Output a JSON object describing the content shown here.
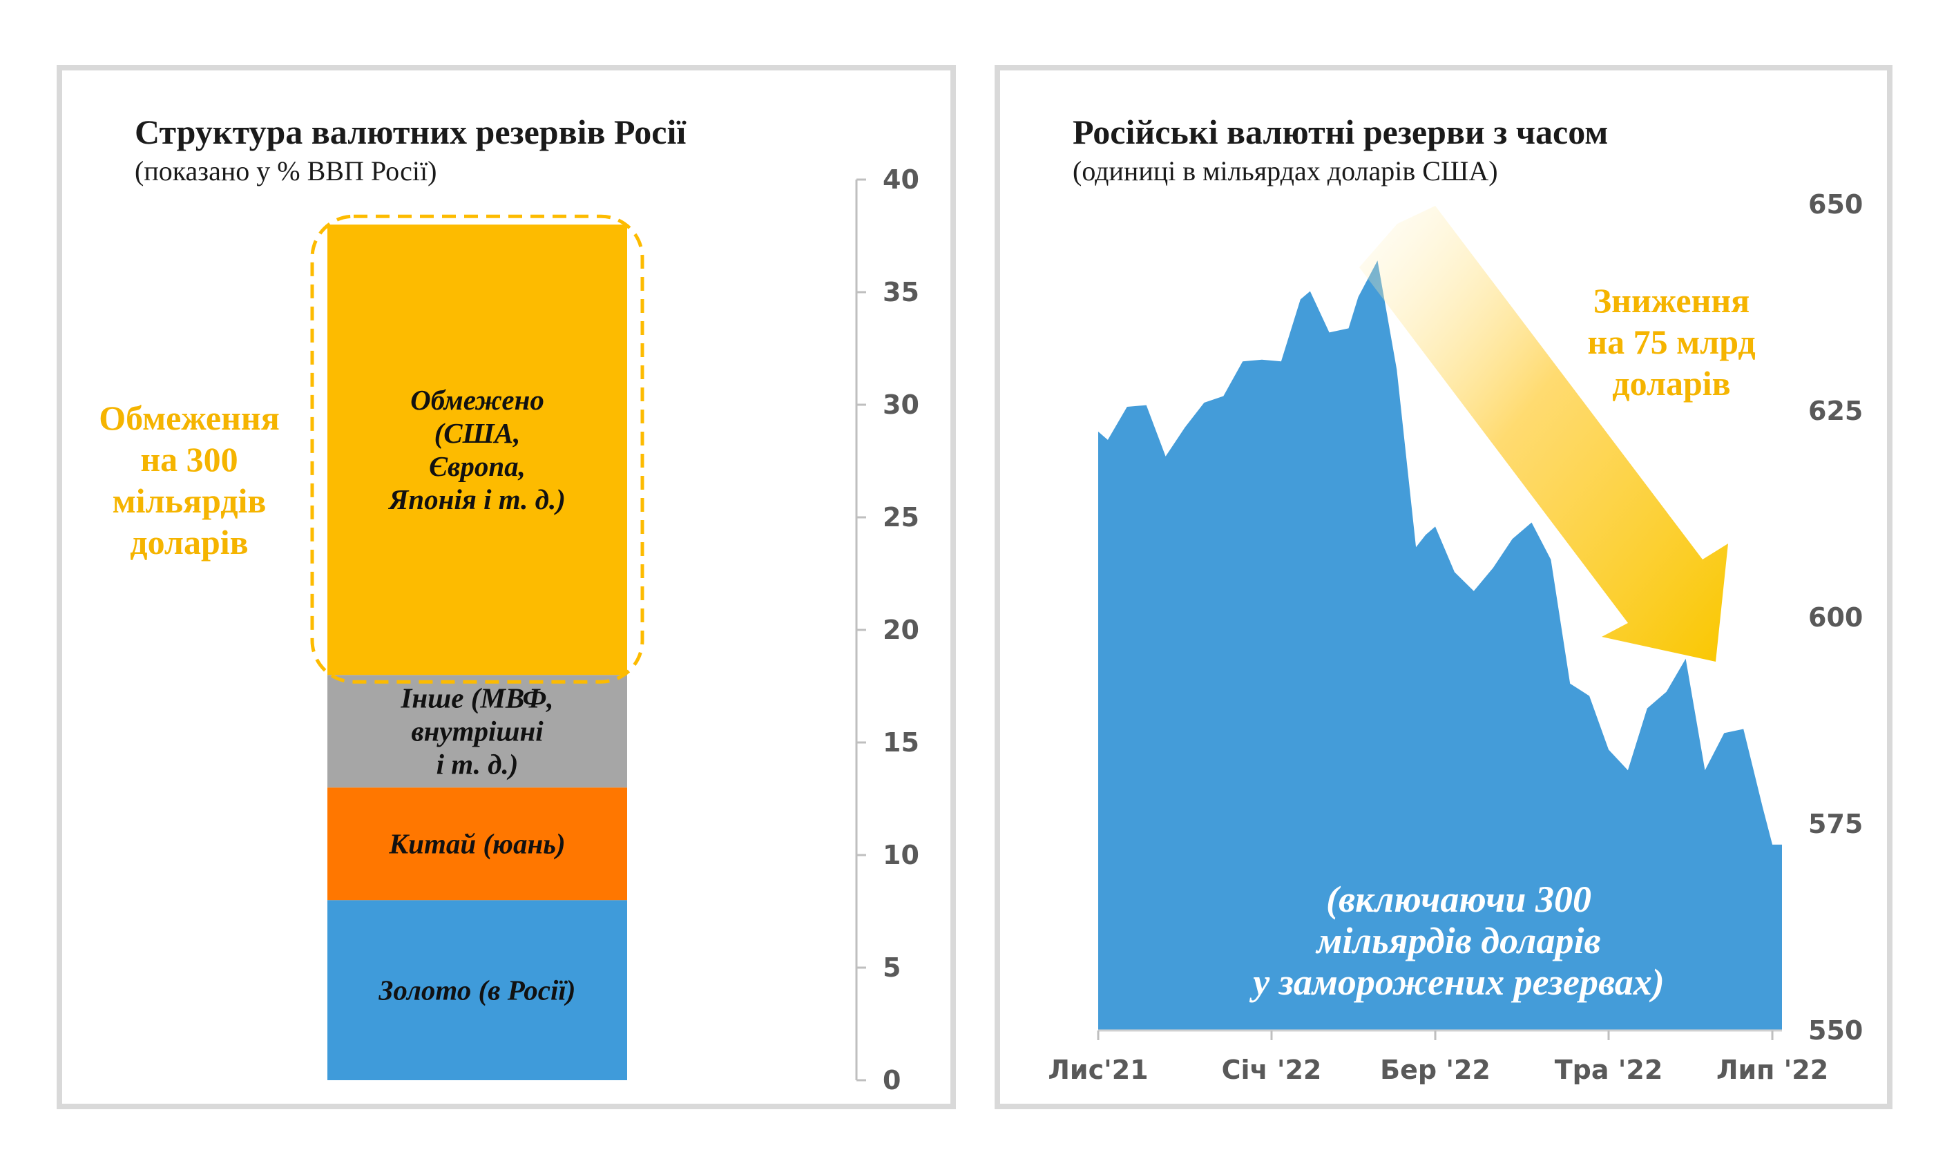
{
  "left": {
    "title": "Структура валютних резервів Росії",
    "subtitle": "(показано у % ВВП Росії)",
    "callout_lines": [
      "Обмеження",
      "на 300",
      "мільярдів",
      "доларів"
    ]
  },
  "right": {
    "title": "Російські валютні резерви з часом",
    "subtitle": "(одиниці в мільярдах доларів США)",
    "callout_lines": [
      "Зниження",
      "на 75 млрд",
      "доларів"
    ],
    "note_lines": [
      "(включаючи 300",
      "мільярдів доларів",
      "у заморожених резервах)"
    ]
  },
  "colors": {
    "gold": "#3f9bda",
    "china": "#ff7700",
    "other": "#a6a6a6",
    "restricted": "#fdbb00",
    "area": "#449cd9",
    "callout": "#f5b400",
    "arrow": "#ffd24d"
  },
  "chart_data": [
    {
      "type": "bar",
      "stacked": true,
      "ylim": [
        0,
        40
      ],
      "yticks": [
        0,
        5,
        10,
        15,
        20,
        25,
        30,
        35,
        40
      ],
      "segments": [
        {
          "lines": [
            "Золото (в Росії)"
          ],
          "value": 8
        },
        {
          "lines": [
            "Китай (юань)"
          ],
          "value": 5
        },
        {
          "lines": [
            "Інше (МВФ,",
            "внутрішні",
            "і т. д.)"
          ],
          "value": 5
        },
        {
          "lines": [
            "Обмежено",
            "(США,",
            "Європа,",
            "Японія і т. д.)"
          ],
          "value": 20
        }
      ]
    },
    {
      "type": "area",
      "ylim": [
        550,
        650
      ],
      "yticks": [
        550,
        575,
        600,
        625,
        650
      ],
      "xticks": [
        {
          "label": "Лис'21",
          "x": 0
        },
        {
          "label": "Січ '22",
          "x": 9
        },
        {
          "label": "Бер '22",
          "x": 17.5
        },
        {
          "label": "Тра '22",
          "x": 26.5
        },
        {
          "label": "Лип '22",
          "x": 35
        }
      ],
      "x": [
        0,
        0.5,
        1.5,
        2.5,
        3.5,
        4.5,
        5.5,
        6.5,
        7.5,
        8.5,
        9.5,
        10.5,
        11,
        12,
        13,
        13.5,
        14.5,
        15.5,
        16.5,
        17,
        17.5,
        18.5,
        19.5,
        20.5,
        21.5,
        22.5,
        23.5,
        24.5,
        25.5,
        26.5,
        27.5,
        28.5,
        29.5,
        30.5,
        31.5,
        32.5,
        33.5,
        34.5,
        35,
        35.5
      ],
      "values": [
        622.5,
        621.5,
        625.5,
        625.7,
        619.5,
        623.0,
        626.0,
        626.8,
        631.0,
        631.2,
        631.0,
        638.5,
        639.5,
        634.5,
        635.0,
        638.8,
        643.2,
        630.0,
        608.5,
        610.0,
        611.0,
        605.5,
        603.2,
        606.0,
        609.5,
        611.5,
        607.0,
        592.0,
        590.5,
        584.0,
        581.5,
        589.0,
        591.0,
        595.0,
        581.5,
        586.0,
        586.5,
        577.0,
        572.5,
        572.5
      ]
    }
  ]
}
